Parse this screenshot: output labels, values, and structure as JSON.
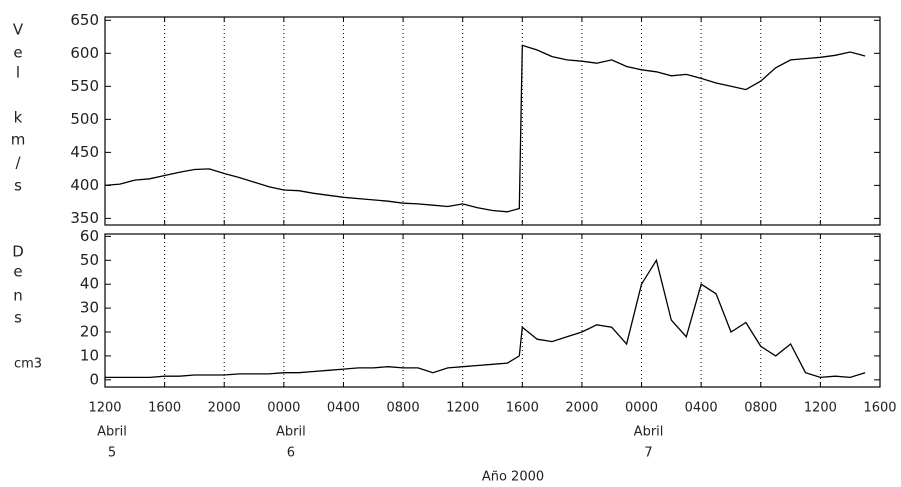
{
  "chart_data": [
    {
      "type": "line",
      "color": "#000000",
      "ylabel_lines": [
        "V",
        "e",
        "l",
        "k",
        "m",
        "/",
        "s"
      ],
      "x": [
        0,
        1,
        2,
        3,
        4,
        5,
        6,
        7,
        8,
        9,
        10,
        11,
        12,
        13,
        14,
        15,
        16,
        17,
        18,
        19,
        20,
        21,
        22,
        23,
        24,
        25,
        26,
        27,
        27.8,
        28,
        29,
        30,
        31,
        32,
        33,
        34,
        35,
        36,
        37,
        38,
        39,
        40,
        41,
        42,
        43,
        44,
        45,
        46,
        47,
        48,
        49,
        50,
        51
      ],
      "values": [
        400,
        402,
        408,
        410,
        415,
        420,
        424,
        425,
        418,
        412,
        405,
        398,
        393,
        392,
        388,
        385,
        382,
        380,
        378,
        376,
        373,
        372,
        370,
        368,
        372,
        366,
        362,
        360,
        365,
        612,
        605,
        595,
        590,
        588,
        585,
        590,
        580,
        575,
        572,
        566,
        568,
        562,
        555,
        550,
        545,
        558,
        578,
        590,
        592,
        594,
        597,
        602,
        596
      ],
      "xlim": [
        0,
        52
      ],
      "xticks": [
        0,
        4,
        8,
        12,
        16,
        20,
        24,
        28,
        32,
        36,
        40,
        44,
        48,
        52
      ],
      "ylim": [
        340,
        655
      ],
      "yticks": [
        350,
        400,
        450,
        500,
        550,
        600,
        650
      ],
      "grid": true
    },
    {
      "type": "line",
      "color": "#000000",
      "ylabel_lines": [
        "D",
        "e",
        "n",
        "s"
      ],
      "ylabel_unit": "cm3",
      "x": [
        0,
        1,
        2,
        3,
        4,
        5,
        6,
        7,
        8,
        9,
        10,
        11,
        12,
        13,
        14,
        15,
        16,
        17,
        18,
        19,
        20,
        21,
        22,
        23,
        24,
        25,
        26,
        27,
        27.8,
        28,
        29,
        30,
        31,
        32,
        33,
        34,
        35,
        36,
        37,
        38,
        39,
        40,
        41,
        42,
        43,
        44,
        45,
        46,
        47,
        48,
        49,
        50,
        51
      ],
      "values": [
        1,
        1,
        1,
        1,
        1.5,
        1.5,
        2,
        2,
        2,
        2.5,
        2.5,
        2.5,
        3,
        3,
        3.5,
        4,
        4.5,
        5,
        5,
        5.5,
        5,
        5,
        3,
        5,
        5.5,
        6,
        6.5,
        7,
        10,
        22,
        17,
        16,
        18,
        20,
        23,
        22,
        15,
        40,
        50,
        25,
        18,
        40,
        36,
        20,
        24,
        14,
        10,
        15,
        3,
        1,
        1.5,
        1,
        3
      ],
      "xlim": [
        0,
        52
      ],
      "xticks": [
        {
          "value": 0,
          "label": "1200"
        },
        {
          "value": 4,
          "label": "1600"
        },
        {
          "value": 8,
          "label": "2000"
        },
        {
          "value": 12,
          "label": "0000"
        },
        {
          "value": 16,
          "label": "0400"
        },
        {
          "value": 20,
          "label": "0800"
        },
        {
          "value": 24,
          "label": "1200"
        },
        {
          "value": 28,
          "label": "1600"
        },
        {
          "value": 32,
          "label": "2000"
        },
        {
          "value": 36,
          "label": "0000"
        },
        {
          "value": 40,
          "label": "0400"
        },
        {
          "value": 44,
          "label": "0800"
        },
        {
          "value": 48,
          "label": "1200"
        },
        {
          "value": 52,
          "label": "1600"
        }
      ],
      "day_labels": [
        {
          "x": 0,
          "month": "Abril",
          "day": "5"
        },
        {
          "x": 12,
          "month": "Abril",
          "day": "6"
        },
        {
          "x": 36,
          "month": "Abril",
          "day": "7"
        }
      ],
      "xlabel": "Año 2000",
      "ylim": [
        -3,
        61
      ],
      "yticks": [
        0,
        10,
        20,
        30,
        40,
        50,
        60
      ],
      "grid": true
    }
  ]
}
